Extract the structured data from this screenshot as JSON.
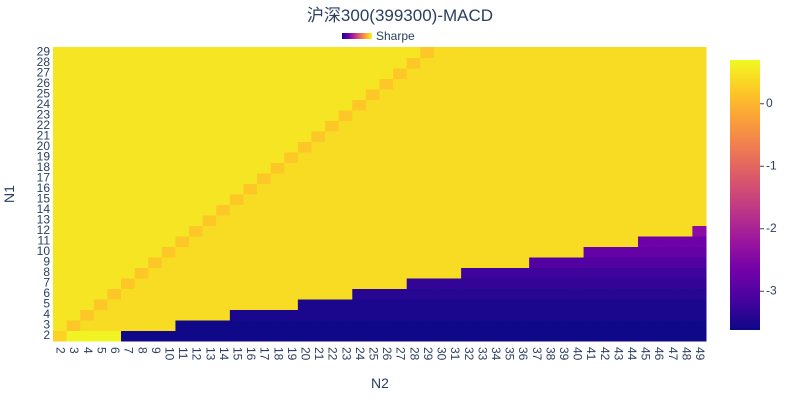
{
  "chart_data": {
    "type": "heatmap",
    "title": "沪深300(399300)-MACD",
    "legend_label": "Sharpe",
    "x_label": "N2",
    "y_label": "N1",
    "x": [
      2,
      3,
      4,
      5,
      6,
      7,
      8,
      9,
      10,
      11,
      12,
      13,
      14,
      15,
      16,
      17,
      18,
      19,
      20,
      21,
      22,
      23,
      24,
      25,
      26,
      27,
      28,
      29,
      30,
      31,
      32,
      33,
      34,
      35,
      36,
      37,
      38,
      39,
      40,
      41,
      42,
      43,
      44,
      45,
      46,
      47,
      48,
      49
    ],
    "y": [
      2,
      3,
      4,
      5,
      6,
      7,
      8,
      9,
      10,
      11,
      12,
      13,
      14,
      15,
      16,
      17,
      18,
      19,
      20,
      21,
      22,
      23,
      24,
      25,
      26,
      27,
      28,
      29
    ],
    "colorscale": [
      "#0d0887",
      "#46039f",
      "#7201a8",
      "#9c179e",
      "#bd3786",
      "#d8576b",
      "#ed7953",
      "#fb9f3a",
      "#fdca26",
      "#f0f921"
    ],
    "zlim": [
      -3.62,
      0.7
    ],
    "zticks": [
      0,
      -1,
      -2,
      -3
    ],
    "z": [
      [
        0.3,
        0.65,
        0.65,
        0.65,
        0.65,
        -3.6,
        -3.6,
        -3.6,
        -3.6,
        -3.6,
        -3.6,
        -3.6,
        -3.6,
        -3.6,
        -3.6,
        -3.6,
        -3.6,
        -3.6,
        -3.6,
        -3.6,
        -3.6,
        -3.6,
        -3.6,
        -3.6,
        -3.6,
        -3.6,
        -3.6,
        -3.6,
        -3.6,
        -3.6,
        -3.6,
        -3.6,
        -3.6,
        -3.6,
        -3.6,
        -3.6,
        -3.6,
        -3.6,
        -3.6,
        -3.6,
        -3.6,
        -3.6,
        -3.6,
        -3.6,
        -3.6,
        -3.6,
        -3.6,
        -3.6
      ],
      [
        0.5,
        0.2,
        0.4,
        0.4,
        0.4,
        0.4,
        0.4,
        0.4,
        0.4,
        -3.6,
        -3.6,
        -3.6,
        -3.6,
        -3.6,
        -3.6,
        -3.6,
        -3.6,
        -3.6,
        -3.6,
        -3.6,
        -3.6,
        -3.6,
        -3.6,
        -3.6,
        -3.6,
        -3.6,
        -3.6,
        -3.6,
        -3.6,
        -3.6,
        -3.6,
        -3.6,
        -3.6,
        -3.6,
        -3.6,
        -3.6,
        -3.6,
        -3.6,
        -3.6,
        -3.6,
        -3.6,
        -3.6,
        -3.6,
        -3.6,
        -3.6,
        -3.6,
        -3.6,
        -3.6
      ],
      [
        0.5,
        0.5,
        0.2,
        0.4,
        0.4,
        0.4,
        0.4,
        0.4,
        0.4,
        0.4,
        0.4,
        0.4,
        0.4,
        -3.5,
        -3.5,
        -3.5,
        -3.5,
        -3.5,
        -3.5,
        -3.5,
        -3.5,
        -3.5,
        -3.5,
        -3.5,
        -3.5,
        -3.5,
        -3.5,
        -3.5,
        -3.5,
        -3.5,
        -3.5,
        -3.5,
        -3.5,
        -3.5,
        -3.5,
        -3.5,
        -3.5,
        -3.5,
        -3.5,
        -3.5,
        -3.5,
        -3.5,
        -3.5,
        -3.5,
        -3.5,
        -3.5,
        -3.5,
        -3.5
      ],
      [
        0.5,
        0.5,
        0.5,
        0.2,
        0.4,
        0.4,
        0.4,
        0.4,
        0.4,
        0.4,
        0.4,
        0.4,
        0.4,
        0.4,
        0.4,
        0.4,
        0.4,
        0.4,
        -3.5,
        -3.5,
        -3.5,
        -3.5,
        -3.5,
        -3.5,
        -3.5,
        -3.5,
        -3.5,
        -3.5,
        -3.5,
        -3.5,
        -3.5,
        -3.5,
        -3.5,
        -3.5,
        -3.5,
        -3.5,
        -3.5,
        -3.5,
        -3.5,
        -3.5,
        -3.5,
        -3.5,
        -3.5,
        -3.5,
        -3.5,
        -3.5,
        -3.5,
        -3.5
      ],
      [
        0.5,
        0.5,
        0.5,
        0.5,
        0.2,
        0.4,
        0.4,
        0.4,
        0.4,
        0.4,
        0.4,
        0.4,
        0.4,
        0.4,
        0.4,
        0.4,
        0.4,
        0.4,
        0.4,
        0.4,
        0.4,
        0.4,
        -3.4,
        -3.4,
        -3.4,
        -3.4,
        -3.4,
        -3.4,
        -3.4,
        -3.4,
        -3.4,
        -3.4,
        -3.4,
        -3.4,
        -3.4,
        -3.4,
        -3.4,
        -3.4,
        -3.4,
        -3.4,
        -3.4,
        -3.4,
        -3.4,
        -3.4,
        -3.4,
        -3.4,
        -3.4,
        -3.4
      ],
      [
        0.5,
        0.5,
        0.5,
        0.5,
        0.5,
        0.2,
        0.4,
        0.4,
        0.4,
        0.4,
        0.4,
        0.4,
        0.4,
        0.4,
        0.4,
        0.4,
        0.4,
        0.4,
        0.4,
        0.4,
        0.4,
        0.4,
        0.4,
        0.4,
        0.4,
        0.4,
        -3.3,
        -3.3,
        -3.3,
        -3.3,
        -3.3,
        -3.3,
        -3.3,
        -3.3,
        -3.3,
        -3.3,
        -3.3,
        -3.3,
        -3.3,
        -3.3,
        -3.3,
        -3.3,
        -3.3,
        -3.3,
        -3.3,
        -3.3,
        -3.3,
        -3.3
      ],
      [
        0.5,
        0.5,
        0.5,
        0.5,
        0.5,
        0.5,
        0.2,
        0.4,
        0.4,
        0.4,
        0.4,
        0.4,
        0.4,
        0.4,
        0.4,
        0.4,
        0.4,
        0.4,
        0.4,
        0.4,
        0.4,
        0.4,
        0.4,
        0.4,
        0.4,
        0.4,
        0.4,
        0.4,
        0.4,
        0.4,
        -3.2,
        -3.2,
        -3.2,
        -3.2,
        -3.2,
        -3.2,
        -3.2,
        -3.2,
        -3.2,
        -3.2,
        -3.2,
        -3.2,
        -3.2,
        -3.2,
        -3.2,
        -3.2,
        -3.2,
        -3.2
      ],
      [
        0.5,
        0.5,
        0.5,
        0.5,
        0.5,
        0.5,
        0.5,
        0.2,
        0.4,
        0.4,
        0.4,
        0.4,
        0.4,
        0.4,
        0.4,
        0.4,
        0.4,
        0.4,
        0.4,
        0.4,
        0.4,
        0.4,
        0.4,
        0.4,
        0.4,
        0.4,
        0.4,
        0.4,
        0.4,
        0.4,
        0.4,
        0.4,
        0.4,
        0.4,
        0.4,
        -3.0,
        -3.0,
        -3.0,
        -3.0,
        -3.0,
        -3.0,
        -3.0,
        -3.0,
        -3.0,
        -3.0,
        -3.0,
        -3.0,
        -3.0
      ],
      [
        0.5,
        0.5,
        0.5,
        0.5,
        0.5,
        0.5,
        0.5,
        0.5,
        0.2,
        0.4,
        0.4,
        0.4,
        0.4,
        0.4,
        0.4,
        0.4,
        0.4,
        0.4,
        0.4,
        0.4,
        0.4,
        0.4,
        0.4,
        0.4,
        0.4,
        0.4,
        0.4,
        0.4,
        0.4,
        0.4,
        0.4,
        0.4,
        0.4,
        0.4,
        0.4,
        0.4,
        0.4,
        0.4,
        0.4,
        -2.8,
        -2.8,
        -2.8,
        -2.8,
        -2.8,
        -2.8,
        -2.8,
        -2.8,
        -2.8
      ],
      [
        0.5,
        0.5,
        0.5,
        0.5,
        0.5,
        0.5,
        0.5,
        0.5,
        0.5,
        0.2,
        0.4,
        0.4,
        0.4,
        0.4,
        0.4,
        0.4,
        0.4,
        0.4,
        0.4,
        0.4,
        0.4,
        0.4,
        0.4,
        0.4,
        0.4,
        0.4,
        0.4,
        0.4,
        0.4,
        0.4,
        0.4,
        0.4,
        0.4,
        0.4,
        0.4,
        0.4,
        0.4,
        0.4,
        0.4,
        0.4,
        0.4,
        0.4,
        0.4,
        -2.7,
        -2.7,
        -2.7,
        -2.7,
        -2.7
      ],
      [
        0.5,
        0.5,
        0.5,
        0.5,
        0.5,
        0.5,
        0.5,
        0.5,
        0.5,
        0.5,
        0.2,
        0.4,
        0.4,
        0.4,
        0.4,
        0.4,
        0.4,
        0.4,
        0.4,
        0.4,
        0.4,
        0.4,
        0.4,
        0.4,
        0.4,
        0.4,
        0.4,
        0.4,
        0.4,
        0.4,
        0.4,
        0.4,
        0.4,
        0.4,
        0.4,
        0.4,
        0.4,
        0.4,
        0.4,
        0.4,
        0.4,
        0.4,
        0.4,
        0.4,
        0.4,
        0.4,
        0.4,
        -2.4
      ],
      [
        0.5,
        0.5,
        0.5,
        0.5,
        0.5,
        0.5,
        0.5,
        0.5,
        0.5,
        0.5,
        0.5,
        0.2,
        0.4,
        0.4,
        0.4,
        0.4,
        0.4,
        0.4,
        0.4,
        0.4,
        0.4,
        0.4,
        0.4,
        0.4,
        0.4,
        0.4,
        0.4,
        0.4,
        0.4,
        0.4,
        0.4,
        0.4,
        0.4,
        0.4,
        0.4,
        0.4,
        0.4,
        0.4,
        0.4,
        0.4,
        0.4,
        0.4,
        0.4,
        0.4,
        0.4,
        0.4,
        0.4,
        0.4
      ],
      [
        0.5,
        0.5,
        0.5,
        0.5,
        0.5,
        0.5,
        0.5,
        0.5,
        0.5,
        0.5,
        0.5,
        0.5,
        0.2,
        0.4,
        0.4,
        0.4,
        0.4,
        0.4,
        0.4,
        0.4,
        0.4,
        0.4,
        0.4,
        0.4,
        0.4,
        0.4,
        0.4,
        0.4,
        0.4,
        0.4,
        0.4,
        0.4,
        0.4,
        0.4,
        0.4,
        0.4,
        0.4,
        0.4,
        0.4,
        0.4,
        0.4,
        0.4,
        0.4,
        0.4,
        0.4,
        0.4,
        0.4,
        0.4
      ],
      [
        0.5,
        0.5,
        0.5,
        0.5,
        0.5,
        0.5,
        0.5,
        0.5,
        0.5,
        0.5,
        0.5,
        0.5,
        0.5,
        0.2,
        0.4,
        0.4,
        0.4,
        0.4,
        0.4,
        0.4,
        0.4,
        0.4,
        0.4,
        0.4,
        0.4,
        0.4,
        0.4,
        0.4,
        0.4,
        0.4,
        0.4,
        0.4,
        0.4,
        0.4,
        0.4,
        0.4,
        0.4,
        0.4,
        0.4,
        0.4,
        0.4,
        0.4,
        0.4,
        0.4,
        0.4,
        0.4,
        0.4,
        0.4
      ],
      [
        0.5,
        0.5,
        0.5,
        0.5,
        0.5,
        0.5,
        0.5,
        0.5,
        0.5,
        0.5,
        0.5,
        0.5,
        0.5,
        0.5,
        0.2,
        0.4,
        0.4,
        0.4,
        0.4,
        0.4,
        0.4,
        0.4,
        0.4,
        0.4,
        0.4,
        0.4,
        0.4,
        0.4,
        0.4,
        0.4,
        0.4,
        0.4,
        0.4,
        0.4,
        0.4,
        0.4,
        0.4,
        0.4,
        0.4,
        0.4,
        0.4,
        0.4,
        0.4,
        0.4,
        0.4,
        0.4,
        0.4,
        0.4
      ],
      [
        0.5,
        0.5,
        0.5,
        0.5,
        0.5,
        0.5,
        0.5,
        0.5,
        0.5,
        0.5,
        0.5,
        0.5,
        0.5,
        0.5,
        0.5,
        0.2,
        0.4,
        0.4,
        0.4,
        0.4,
        0.4,
        0.4,
        0.4,
        0.4,
        0.4,
        0.4,
        0.4,
        0.4,
        0.4,
        0.4,
        0.4,
        0.4,
        0.4,
        0.4,
        0.4,
        0.4,
        0.4,
        0.4,
        0.4,
        0.4,
        0.4,
        0.4,
        0.4,
        0.4,
        0.4,
        0.4,
        0.4,
        0.4
      ],
      [
        0.5,
        0.5,
        0.5,
        0.5,
        0.5,
        0.5,
        0.5,
        0.5,
        0.5,
        0.5,
        0.5,
        0.5,
        0.5,
        0.5,
        0.5,
        0.5,
        0.2,
        0.4,
        0.4,
        0.4,
        0.4,
        0.4,
        0.4,
        0.4,
        0.4,
        0.4,
        0.4,
        0.4,
        0.4,
        0.4,
        0.4,
        0.4,
        0.4,
        0.4,
        0.4,
        0.4,
        0.4,
        0.4,
        0.4,
        0.4,
        0.4,
        0.4,
        0.4,
        0.4,
        0.4,
        0.4,
        0.4,
        0.4
      ],
      [
        0.5,
        0.5,
        0.5,
        0.5,
        0.5,
        0.5,
        0.5,
        0.5,
        0.5,
        0.5,
        0.5,
        0.5,
        0.5,
        0.5,
        0.5,
        0.5,
        0.5,
        0.2,
        0.4,
        0.4,
        0.4,
        0.4,
        0.4,
        0.4,
        0.4,
        0.4,
        0.4,
        0.4,
        0.4,
        0.4,
        0.4,
        0.4,
        0.4,
        0.4,
        0.4,
        0.4,
        0.4,
        0.4,
        0.4,
        0.4,
        0.4,
        0.4,
        0.4,
        0.4,
        0.4,
        0.4,
        0.4,
        0.4
      ],
      [
        0.5,
        0.5,
        0.5,
        0.5,
        0.5,
        0.5,
        0.5,
        0.5,
        0.5,
        0.5,
        0.5,
        0.5,
        0.5,
        0.5,
        0.5,
        0.5,
        0.5,
        0.5,
        0.2,
        0.4,
        0.4,
        0.4,
        0.4,
        0.4,
        0.4,
        0.4,
        0.4,
        0.4,
        0.4,
        0.4,
        0.4,
        0.4,
        0.4,
        0.4,
        0.4,
        0.4,
        0.4,
        0.4,
        0.4,
        0.4,
        0.4,
        0.4,
        0.4,
        0.4,
        0.4,
        0.4,
        0.4,
        0.4
      ],
      [
        0.5,
        0.5,
        0.5,
        0.5,
        0.5,
        0.5,
        0.5,
        0.5,
        0.5,
        0.5,
        0.5,
        0.5,
        0.5,
        0.5,
        0.5,
        0.5,
        0.5,
        0.5,
        0.5,
        0.2,
        0.4,
        0.4,
        0.4,
        0.4,
        0.4,
        0.4,
        0.4,
        0.4,
        0.4,
        0.4,
        0.4,
        0.4,
        0.4,
        0.4,
        0.4,
        0.4,
        0.4,
        0.4,
        0.4,
        0.4,
        0.4,
        0.4,
        0.4,
        0.4,
        0.4,
        0.4,
        0.4,
        0.4
      ],
      [
        0.5,
        0.5,
        0.5,
        0.5,
        0.5,
        0.5,
        0.5,
        0.5,
        0.5,
        0.5,
        0.5,
        0.5,
        0.5,
        0.5,
        0.5,
        0.5,
        0.5,
        0.5,
        0.5,
        0.5,
        0.2,
        0.4,
        0.4,
        0.4,
        0.4,
        0.4,
        0.4,
        0.4,
        0.4,
        0.4,
        0.4,
        0.4,
        0.4,
        0.4,
        0.4,
        0.4,
        0.4,
        0.4,
        0.4,
        0.4,
        0.4,
        0.4,
        0.4,
        0.4,
        0.4,
        0.4,
        0.4,
        0.4
      ],
      [
        0.5,
        0.5,
        0.5,
        0.5,
        0.5,
        0.5,
        0.5,
        0.5,
        0.5,
        0.5,
        0.5,
        0.5,
        0.5,
        0.5,
        0.5,
        0.5,
        0.5,
        0.5,
        0.5,
        0.5,
        0.5,
        0.2,
        0.4,
        0.4,
        0.4,
        0.4,
        0.4,
        0.4,
        0.4,
        0.4,
        0.4,
        0.4,
        0.4,
        0.4,
        0.4,
        0.4,
        0.4,
        0.4,
        0.4,
        0.4,
        0.4,
        0.4,
        0.4,
        0.4,
        0.4,
        0.4,
        0.4,
        0.4
      ],
      [
        0.5,
        0.5,
        0.5,
        0.5,
        0.5,
        0.5,
        0.5,
        0.5,
        0.5,
        0.5,
        0.5,
        0.5,
        0.5,
        0.5,
        0.5,
        0.5,
        0.5,
        0.5,
        0.5,
        0.5,
        0.5,
        0.5,
        0.2,
        0.4,
        0.4,
        0.4,
        0.4,
        0.4,
        0.4,
        0.4,
        0.4,
        0.4,
        0.4,
        0.4,
        0.4,
        0.4,
        0.4,
        0.4,
        0.4,
        0.4,
        0.4,
        0.4,
        0.4,
        0.4,
        0.4,
        0.4,
        0.4,
        0.4
      ],
      [
        0.5,
        0.5,
        0.5,
        0.5,
        0.5,
        0.5,
        0.5,
        0.5,
        0.5,
        0.5,
        0.5,
        0.5,
        0.5,
        0.5,
        0.5,
        0.5,
        0.5,
        0.5,
        0.5,
        0.5,
        0.5,
        0.5,
        0.5,
        0.2,
        0.4,
        0.4,
        0.4,
        0.4,
        0.4,
        0.4,
        0.4,
        0.4,
        0.4,
        0.4,
        0.4,
        0.4,
        0.4,
        0.4,
        0.4,
        0.4,
        0.4,
        0.4,
        0.4,
        0.4,
        0.4,
        0.4,
        0.4,
        0.4
      ],
      [
        0.5,
        0.5,
        0.5,
        0.5,
        0.5,
        0.5,
        0.5,
        0.5,
        0.5,
        0.5,
        0.5,
        0.5,
        0.5,
        0.5,
        0.5,
        0.5,
        0.5,
        0.5,
        0.5,
        0.5,
        0.5,
        0.5,
        0.5,
        0.5,
        0.2,
        0.4,
        0.4,
        0.4,
        0.4,
        0.4,
        0.4,
        0.4,
        0.4,
        0.4,
        0.4,
        0.4,
        0.4,
        0.4,
        0.4,
        0.4,
        0.4,
        0.4,
        0.4,
        0.4,
        0.4,
        0.4,
        0.4,
        0.4
      ],
      [
        0.5,
        0.5,
        0.5,
        0.5,
        0.5,
        0.5,
        0.5,
        0.5,
        0.5,
        0.5,
        0.5,
        0.5,
        0.5,
        0.5,
        0.5,
        0.5,
        0.5,
        0.5,
        0.5,
        0.5,
        0.5,
        0.5,
        0.5,
        0.5,
        0.5,
        0.2,
        0.4,
        0.4,
        0.4,
        0.4,
        0.4,
        0.4,
        0.4,
        0.4,
        0.4,
        0.4,
        0.4,
        0.4,
        0.4,
        0.4,
        0.4,
        0.4,
        0.4,
        0.4,
        0.4,
        0.4,
        0.4,
        0.4
      ],
      [
        0.5,
        0.5,
        0.5,
        0.5,
        0.5,
        0.5,
        0.5,
        0.5,
        0.5,
        0.5,
        0.5,
        0.5,
        0.5,
        0.5,
        0.5,
        0.5,
        0.5,
        0.5,
        0.5,
        0.5,
        0.5,
        0.5,
        0.5,
        0.5,
        0.5,
        0.5,
        0.2,
        0.4,
        0.4,
        0.4,
        0.4,
        0.4,
        0.4,
        0.4,
        0.4,
        0.4,
        0.4,
        0.4,
        0.4,
        0.4,
        0.4,
        0.4,
        0.4,
        0.4,
        0.4,
        0.4,
        0.4,
        0.4
      ],
      [
        0.5,
        0.5,
        0.5,
        0.5,
        0.5,
        0.5,
        0.5,
        0.5,
        0.5,
        0.5,
        0.5,
        0.5,
        0.5,
        0.5,
        0.5,
        0.5,
        0.5,
        0.5,
        0.5,
        0.5,
        0.5,
        0.5,
        0.5,
        0.5,
        0.5,
        0.5,
        0.5,
        0.2,
        0.4,
        0.4,
        0.4,
        0.4,
        0.4,
        0.4,
        0.4,
        0.4,
        0.4,
        0.4,
        0.4,
        0.4,
        0.4,
        0.4,
        0.4,
        0.4,
        0.4,
        0.4,
        0.4,
        0.4
      ]
    ]
  }
}
